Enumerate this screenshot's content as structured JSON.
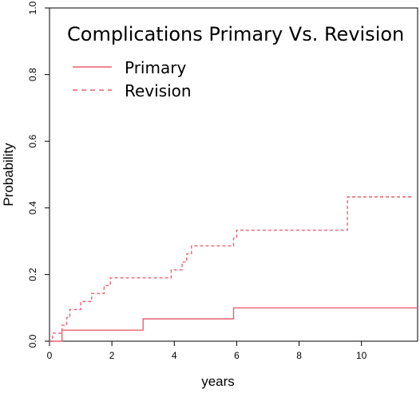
{
  "chart_data": {
    "type": "line",
    "title": "Complications Primary Vs. Revision",
    "xlabel": "years",
    "ylabel": "Probability",
    "xlim": [
      0,
      11.8
    ],
    "ylim": [
      0,
      1.0
    ],
    "x_ticks": [
      "0",
      "2",
      "4",
      "6",
      "8",
      "10"
    ],
    "y_ticks": [
      "0.0",
      "0.2",
      "0.4",
      "0.6",
      "0.8",
      "1.0"
    ],
    "grid": false,
    "legend_position": "top-left",
    "series_color": "#e96070",
    "series": [
      {
        "name": "Primary",
        "line_style": "solid",
        "step": true,
        "x": [
          0,
          0.4,
          3.0,
          5.9,
          11.8
        ],
        "y": [
          0,
          0.033,
          0.067,
          0.1,
          0.1
        ]
      },
      {
        "name": "Revision",
        "line_style": "dashed",
        "step": true,
        "x": [
          0,
          0.1,
          0.4,
          0.55,
          0.65,
          1.0,
          1.35,
          1.75,
          1.95,
          3.9,
          4.25,
          4.4,
          4.55,
          4.75,
          5.9,
          6.0,
          9.55,
          11.6
        ],
        "y": [
          0,
          0.024,
          0.048,
          0.071,
          0.095,
          0.119,
          0.143,
          0.167,
          0.19,
          0.214,
          0.238,
          0.262,
          0.286,
          0.286,
          0.31,
          0.333,
          0.433,
          0.433
        ]
      }
    ]
  }
}
